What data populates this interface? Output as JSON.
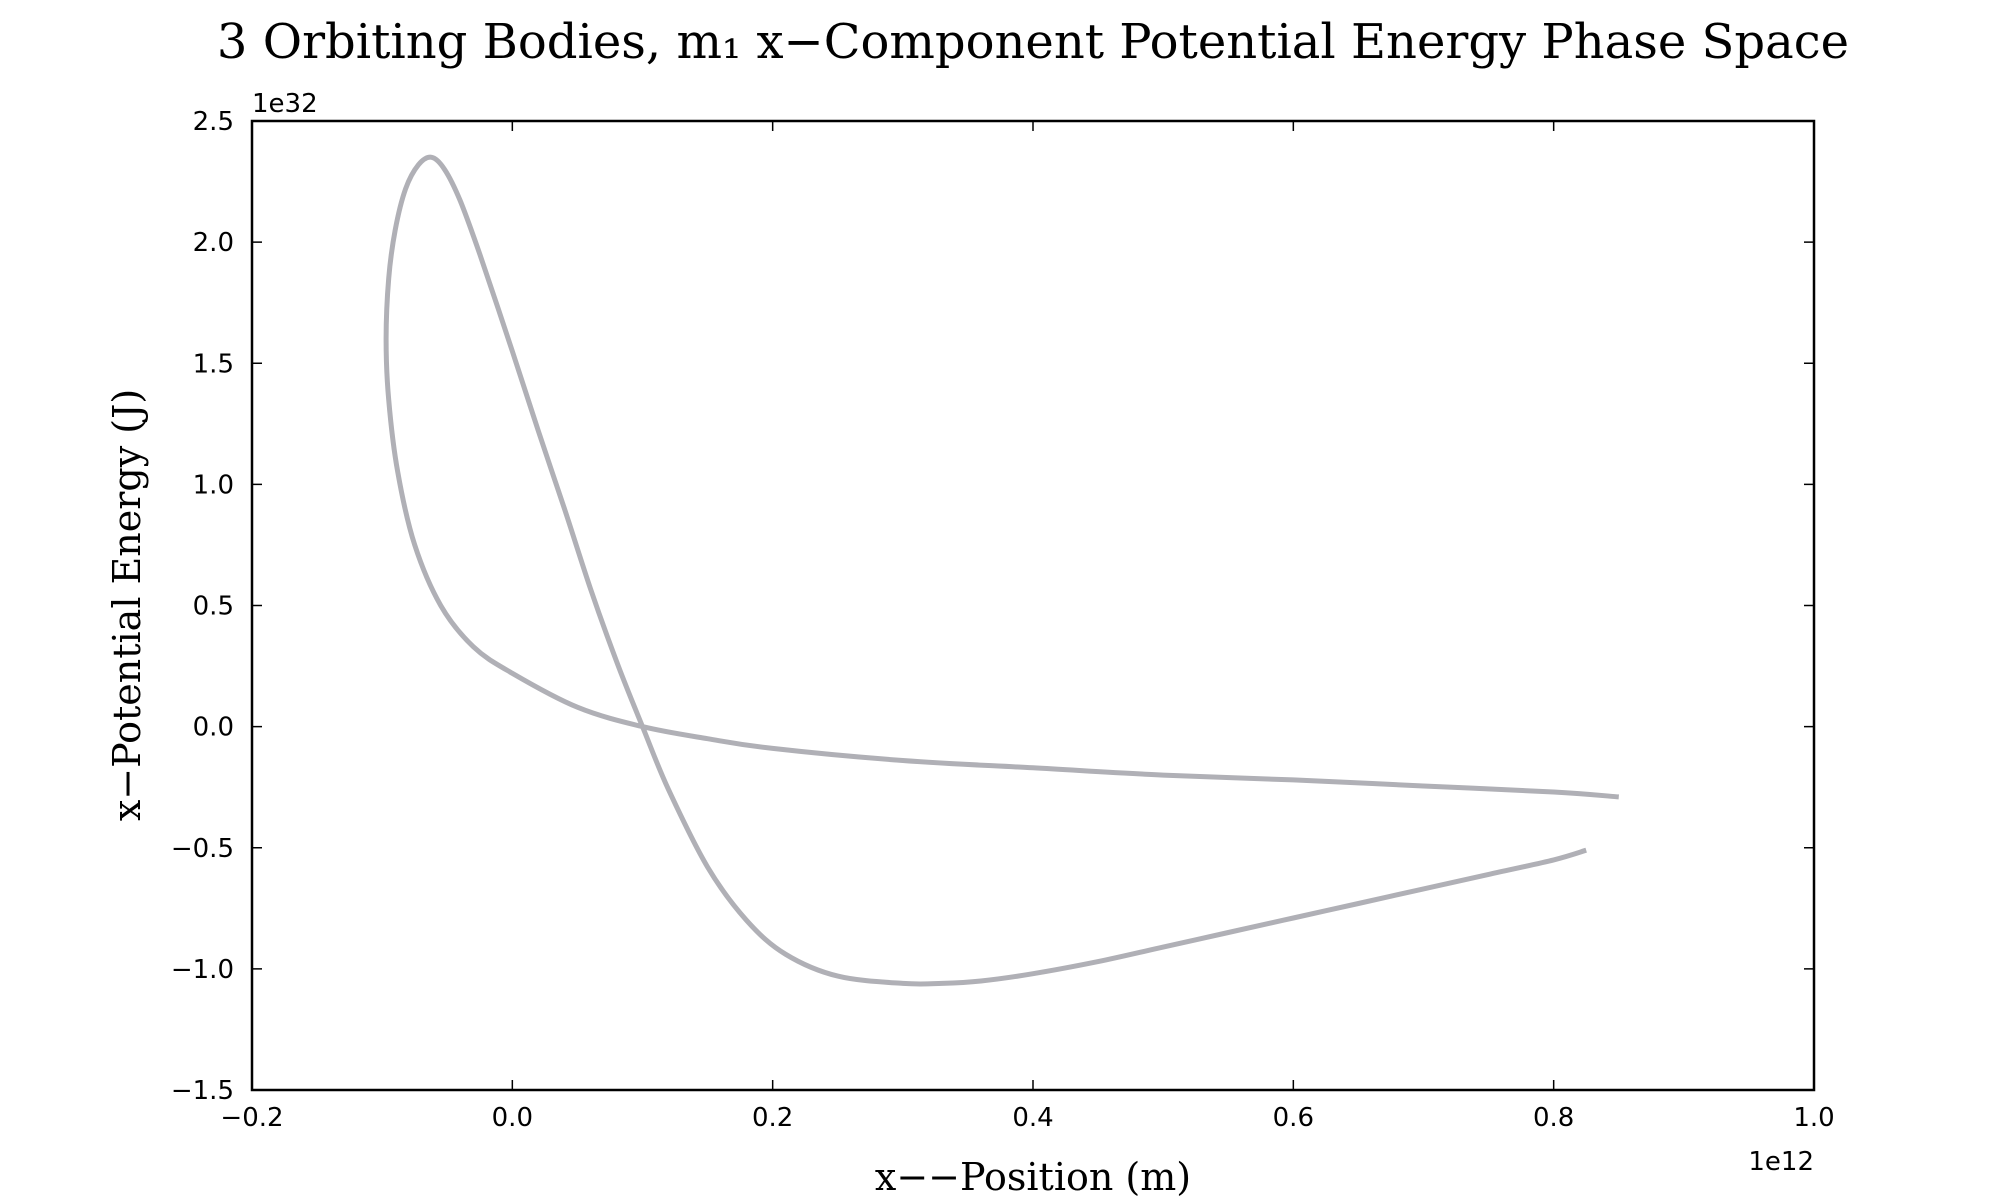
{
  "chart_data": {
    "type": "line",
    "title": "3 Orbiting Bodies, m₁ x−Component Potential Energy Phase Space",
    "xlabel": "x−−Position (m)",
    "ylabel": "x−Potential Energy (J)",
    "x_offset_label": "1e12",
    "y_offset_label": "1e32",
    "xlim": [
      -0.2,
      1.0
    ],
    "ylim": [
      -1.5,
      2.5
    ],
    "x_ticks": [
      -0.2,
      0.0,
      0.2,
      0.4,
      0.6,
      0.8,
      1.0
    ],
    "x_tick_labels": [
      "−0.2",
      "0.0",
      "0.2",
      "0.4",
      "0.6",
      "0.8",
      "1.0"
    ],
    "y_ticks": [
      -1.5,
      -1.0,
      -0.5,
      0.0,
      0.5,
      1.0,
      1.5,
      2.0,
      2.5
    ],
    "y_tick_labels": [
      "−1.5",
      "−1.0",
      "−0.5",
      "0.0",
      "0.5",
      "1.0",
      "1.5",
      "2.0",
      "2.5"
    ],
    "grid": false,
    "line_color": "#b0b0b6",
    "series": [
      {
        "x": [
          0.85,
          0.8,
          0.7,
          0.6,
          0.5,
          0.4,
          0.3,
          0.2,
          0.15,
          0.1,
          0.05,
          0.0,
          -0.03,
          -0.055,
          -0.075,
          -0.088,
          -0.095,
          -0.097,
          -0.095,
          -0.09,
          -0.082,
          -0.072,
          -0.062,
          -0.052,
          -0.04,
          -0.025,
          0.0,
          0.02,
          0.04,
          0.06,
          0.08,
          0.1,
          0.12,
          0.15,
          0.18,
          0.21,
          0.25,
          0.3,
          0.33,
          0.36,
          0.4,
          0.45,
          0.5,
          0.55,
          0.6,
          0.65,
          0.7,
          0.75,
          0.8,
          0.825
        ],
        "y": [
          -0.29,
          -0.27,
          -0.245,
          -0.22,
          -0.2,
          -0.17,
          -0.14,
          -0.09,
          -0.05,
          0.0,
          0.08,
          0.22,
          0.33,
          0.5,
          0.75,
          1.05,
          1.35,
          1.6,
          1.85,
          2.05,
          2.22,
          2.32,
          2.35,
          2.3,
          2.17,
          1.95,
          1.55,
          1.22,
          0.9,
          0.57,
          0.27,
          0.0,
          -0.26,
          -0.58,
          -0.8,
          -0.94,
          -1.03,
          -1.06,
          -1.06,
          -1.05,
          -1.02,
          -0.97,
          -0.91,
          -0.85,
          -0.79,
          -0.73,
          -0.67,
          -0.61,
          -0.55,
          -0.51
        ]
      }
    ]
  }
}
